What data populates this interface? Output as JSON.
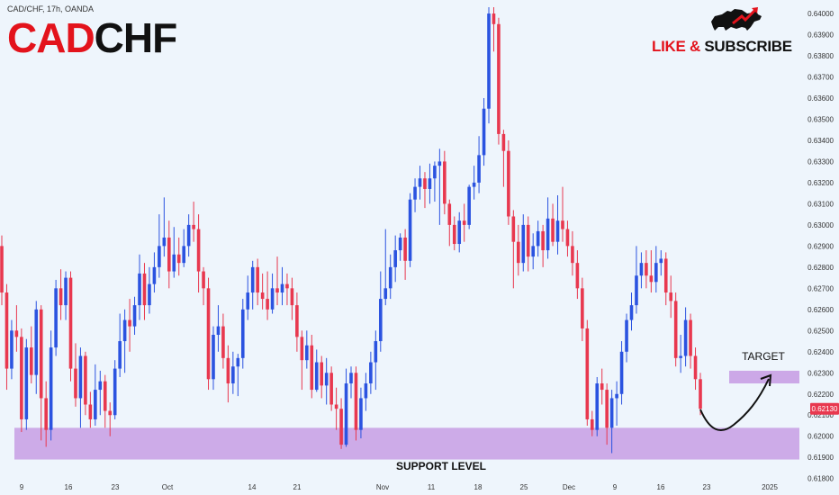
{
  "header": {
    "symbol_line": "CAD/CHF, 17h, OANDA"
  },
  "title": {
    "part_red": "CAD",
    "part_black": "CHF"
  },
  "brand": {
    "like": "LIKE & ",
    "subscribe": "SUBSCRIBE",
    "icon": "bull-icon"
  },
  "colors": {
    "bull": "#2b53e0",
    "bear": "#e8384f",
    "zone": "#c9a3e6",
    "price_tag": "#e8384f",
    "background": "#eef5fc"
  },
  "chart_data": {
    "type": "candlestick",
    "ylim": [
      0.6182,
      0.6403
    ],
    "y_ticks": [
      "0.64000",
      "0.63900",
      "0.63800",
      "0.63700",
      "0.63600",
      "0.63500",
      "0.63400",
      "0.63300",
      "0.63200",
      "0.63100",
      "0.63000",
      "0.62900",
      "0.62800",
      "0.62700",
      "0.62600",
      "0.62500",
      "0.62400",
      "0.62300",
      "0.62200",
      "0.62100",
      "0.62000",
      "0.61900",
      "0.61800"
    ],
    "x_ticks": [
      "9",
      "16",
      "23",
      "Oct",
      "14",
      "21",
      "Nov",
      "11",
      "18",
      "25",
      "Dec",
      "9",
      "16",
      "23",
      "2025"
    ],
    "current_price": "0.62130",
    "annotations": {
      "target_label": "TARGET",
      "support_label": "SUPPORT LEVEL",
      "target_zone": [
        0.6225,
        0.6231
      ],
      "support_zone": [
        0.6189,
        0.6204
      ]
    },
    "candles": [
      [
        0.629,
        0.6268,
        0.6295,
        0.6262
      ],
      [
        0.6268,
        0.6232,
        0.6272,
        0.6222
      ],
      [
        0.6232,
        0.625,
        0.6255,
        0.6227
      ],
      [
        0.625,
        0.6247,
        0.6262,
        0.624
      ],
      [
        0.6247,
        0.6208,
        0.6251,
        0.6202
      ],
      [
        0.6208,
        0.6242,
        0.6246,
        0.6203
      ],
      [
        0.6242,
        0.6229,
        0.6252,
        0.6225
      ],
      [
        0.6229,
        0.626,
        0.6264,
        0.622
      ],
      [
        0.626,
        0.6218,
        0.6262,
        0.6198
      ],
      [
        0.6218,
        0.6203,
        0.6226,
        0.6195
      ],
      [
        0.6203,
        0.6242,
        0.625,
        0.6198
      ],
      [
        0.6242,
        0.627,
        0.6274,
        0.6238
      ],
      [
        0.627,
        0.6262,
        0.6279,
        0.6255
      ],
      [
        0.6262,
        0.6275,
        0.6278,
        0.6255
      ],
      [
        0.6275,
        0.6232,
        0.6278,
        0.6226
      ],
      [
        0.6232,
        0.6218,
        0.6244,
        0.6214
      ],
      [
        0.6218,
        0.6238,
        0.6242,
        0.6204
      ],
      [
        0.6238,
        0.6215,
        0.624,
        0.621
      ],
      [
        0.6215,
        0.6208,
        0.6221,
        0.6204
      ],
      [
        0.6208,
        0.6222,
        0.6234,
        0.6205
      ],
      [
        0.6222,
        0.6226,
        0.6231,
        0.621
      ],
      [
        0.6226,
        0.6212,
        0.6229,
        0.6204
      ],
      [
        0.6212,
        0.621,
        0.6216,
        0.62
      ],
      [
        0.621,
        0.6232,
        0.6236,
        0.6208
      ],
      [
        0.6232,
        0.6245,
        0.6258,
        0.6228
      ],
      [
        0.6245,
        0.6255,
        0.626,
        0.623
      ],
      [
        0.6255,
        0.6252,
        0.6265,
        0.624
      ],
      [
        0.6252,
        0.6262,
        0.6266,
        0.6248
      ],
      [
        0.6262,
        0.6277,
        0.6286,
        0.6255
      ],
      [
        0.6277,
        0.6262,
        0.6282,
        0.6255
      ],
      [
        0.6262,
        0.6272,
        0.628,
        0.6258
      ],
      [
        0.6272,
        0.628,
        0.6287,
        0.6268
      ],
      [
        0.628,
        0.629,
        0.6305,
        0.6275
      ],
      [
        0.629,
        0.6294,
        0.6313,
        0.6285
      ],
      [
        0.6294,
        0.6278,
        0.6302,
        0.627
      ],
      [
        0.6278,
        0.6286,
        0.6299,
        0.6275
      ],
      [
        0.6286,
        0.6282,
        0.6294,
        0.6276
      ],
      [
        0.6282,
        0.629,
        0.6298,
        0.628
      ],
      [
        0.629,
        0.63,
        0.6305,
        0.6285
      ],
      [
        0.63,
        0.6298,
        0.6311,
        0.6292
      ],
      [
        0.6298,
        0.6278,
        0.6305,
        0.6268
      ],
      [
        0.6278,
        0.627,
        0.628,
        0.6262
      ],
      [
        0.627,
        0.6227,
        0.6275,
        0.6222
      ],
      [
        0.6227,
        0.6248,
        0.6252,
        0.6222
      ],
      [
        0.6248,
        0.6252,
        0.6262,
        0.624
      ],
      [
        0.6252,
        0.6237,
        0.6258,
        0.6232
      ],
      [
        0.6237,
        0.6225,
        0.6243,
        0.6216
      ],
      [
        0.6225,
        0.6233,
        0.624,
        0.622
      ],
      [
        0.6233,
        0.6237,
        0.6239,
        0.6219
      ],
      [
        0.6237,
        0.626,
        0.6265,
        0.6232
      ],
      [
        0.626,
        0.6268,
        0.6276,
        0.6255
      ],
      [
        0.6268,
        0.628,
        0.6283,
        0.626
      ],
      [
        0.628,
        0.6268,
        0.6284,
        0.6262
      ],
      [
        0.6268,
        0.6265,
        0.6277,
        0.626
      ],
      [
        0.6265,
        0.626,
        0.6278,
        0.6255
      ],
      [
        0.626,
        0.627,
        0.6277,
        0.6258
      ],
      [
        0.627,
        0.6268,
        0.6285,
        0.6262
      ],
      [
        0.6268,
        0.6272,
        0.628,
        0.6262
      ],
      [
        0.6272,
        0.627,
        0.6277,
        0.6262
      ],
      [
        0.627,
        0.6262,
        0.6275,
        0.6255
      ],
      [
        0.6262,
        0.6247,
        0.6268,
        0.624
      ],
      [
        0.6247,
        0.6236,
        0.625,
        0.6222
      ],
      [
        0.6236,
        0.6243,
        0.625,
        0.6232
      ],
      [
        0.6243,
        0.6222,
        0.6248,
        0.6218
      ],
      [
        0.6222,
        0.6235,
        0.6241,
        0.6221
      ],
      [
        0.6235,
        0.6224,
        0.6238,
        0.6218
      ],
      [
        0.6224,
        0.623,
        0.6237,
        0.6215
      ],
      [
        0.623,
        0.6215,
        0.6233,
        0.6212
      ],
      [
        0.6215,
        0.6213,
        0.6223,
        0.6203
      ],
      [
        0.6213,
        0.6196,
        0.6218,
        0.6194
      ],
      [
        0.6196,
        0.6225,
        0.6232,
        0.6195
      ],
      [
        0.6225,
        0.623,
        0.6233,
        0.6218
      ],
      [
        0.623,
        0.6203,
        0.6233,
        0.6198
      ],
      [
        0.6203,
        0.6218,
        0.6223,
        0.6199
      ],
      [
        0.6218,
        0.6225,
        0.623,
        0.6212
      ],
      [
        0.6225,
        0.6235,
        0.624,
        0.622
      ],
      [
        0.6235,
        0.6245,
        0.625,
        0.6222
      ],
      [
        0.6245,
        0.6265,
        0.6278,
        0.624
      ],
      [
        0.6265,
        0.627,
        0.6298,
        0.6262
      ],
      [
        0.627,
        0.628,
        0.6286,
        0.6265
      ],
      [
        0.628,
        0.6288,
        0.6295,
        0.6273
      ],
      [
        0.6288,
        0.6294,
        0.6296,
        0.6283
      ],
      [
        0.6294,
        0.6283,
        0.6298,
        0.6274
      ],
      [
        0.6283,
        0.6312,
        0.6315,
        0.628
      ],
      [
        0.6312,
        0.6318,
        0.6322,
        0.6306
      ],
      [
        0.6318,
        0.6322,
        0.6328,
        0.6312
      ],
      [
        0.6322,
        0.6317,
        0.6325,
        0.6308
      ],
      [
        0.6317,
        0.6322,
        0.6329,
        0.631
      ],
      [
        0.6322,
        0.6328,
        0.633,
        0.6311
      ],
      [
        0.6328,
        0.633,
        0.6336,
        0.63
      ],
      [
        0.633,
        0.631,
        0.6335,
        0.6305
      ],
      [
        0.631,
        0.63,
        0.6312,
        0.629
      ],
      [
        0.63,
        0.6291,
        0.6304,
        0.6288
      ],
      [
        0.6291,
        0.6302,
        0.6306,
        0.6287
      ],
      [
        0.6302,
        0.63,
        0.631,
        0.6292
      ],
      [
        0.63,
        0.6318,
        0.6319,
        0.6298
      ],
      [
        0.6318,
        0.632,
        0.6328,
        0.6312
      ],
      [
        0.632,
        0.6333,
        0.6342,
        0.6315
      ],
      [
        0.6333,
        0.6355,
        0.636,
        0.6328
      ],
      [
        0.6355,
        0.64,
        0.6403,
        0.6348
      ],
      [
        0.64,
        0.6395,
        0.6403,
        0.6382
      ],
      [
        0.6395,
        0.6343,
        0.6398,
        0.6338
      ],
      [
        0.6343,
        0.6335,
        0.6345,
        0.6318
      ],
      [
        0.6335,
        0.6304,
        0.634,
        0.63
      ],
      [
        0.6304,
        0.6292,
        0.6307,
        0.627
      ],
      [
        0.6292,
        0.6282,
        0.63,
        0.6276
      ],
      [
        0.6282,
        0.63,
        0.6305,
        0.6278
      ],
      [
        0.63,
        0.6285,
        0.6304,
        0.6278
      ],
      [
        0.6285,
        0.629,
        0.6296,
        0.6279
      ],
      [
        0.629,
        0.6297,
        0.6302,
        0.6285
      ],
      [
        0.6297,
        0.6288,
        0.63,
        0.628
      ],
      [
        0.6288,
        0.6303,
        0.6313,
        0.6284
      ],
      [
        0.6303,
        0.6292,
        0.631,
        0.629
      ],
      [
        0.6292,
        0.6302,
        0.6314,
        0.6286
      ],
      [
        0.6302,
        0.6298,
        0.6318,
        0.6292
      ],
      [
        0.6298,
        0.629,
        0.6302,
        0.6285
      ],
      [
        0.629,
        0.6282,
        0.6297,
        0.6276
      ],
      [
        0.6282,
        0.627,
        0.6288,
        0.6265
      ],
      [
        0.627,
        0.6251,
        0.6275,
        0.6245
      ],
      [
        0.6251,
        0.6208,
        0.6255,
        0.6205
      ],
      [
        0.6208,
        0.6203,
        0.6212,
        0.62
      ],
      [
        0.6203,
        0.6225,
        0.6228,
        0.62
      ],
      [
        0.6225,
        0.6222,
        0.6232,
        0.6215
      ],
      [
        0.6222,
        0.6204,
        0.6225,
        0.6196
      ],
      [
        0.6204,
        0.6218,
        0.6222,
        0.6192
      ],
      [
        0.6218,
        0.622,
        0.6226,
        0.6205
      ],
      [
        0.622,
        0.624,
        0.6245,
        0.6215
      ],
      [
        0.624,
        0.6255,
        0.6258,
        0.6235
      ],
      [
        0.6255,
        0.6262,
        0.6268,
        0.625
      ],
      [
        0.6262,
        0.6276,
        0.629,
        0.6258
      ],
      [
        0.6276,
        0.6282,
        0.6287,
        0.627
      ],
      [
        0.6282,
        0.6276,
        0.6288,
        0.627
      ],
      [
        0.6276,
        0.6273,
        0.6288,
        0.6268
      ],
      [
        0.6273,
        0.6282,
        0.629,
        0.6268
      ],
      [
        0.6282,
        0.6284,
        0.6288,
        0.6276
      ],
      [
        0.6284,
        0.6268,
        0.6287,
        0.6262
      ],
      [
        0.6268,
        0.6264,
        0.6276,
        0.6256
      ],
      [
        0.6264,
        0.6237,
        0.6268,
        0.6233
      ],
      [
        0.6237,
        0.6238,
        0.6248,
        0.623
      ],
      [
        0.6238,
        0.6255,
        0.6261,
        0.6233
      ],
      [
        0.6255,
        0.6238,
        0.6258,
        0.6232
      ],
      [
        0.6238,
        0.6227,
        0.6242,
        0.6222
      ],
      [
        0.6227,
        0.6213,
        0.623,
        0.621
      ]
    ]
  }
}
